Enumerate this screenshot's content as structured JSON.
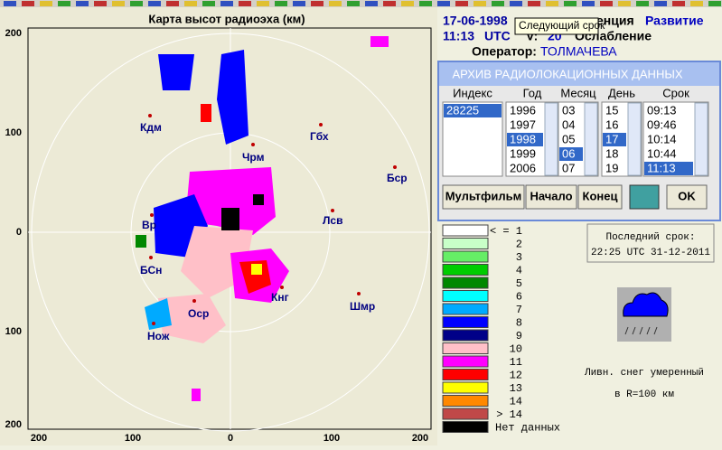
{
  "header": {
    "date": "17-06-1998",
    "time": "11:13",
    "tz": "UTC",
    "tooltip": "Следующий срок",
    "label1": "енция",
    "label1_value": "Развитие",
    "v_label": "V:",
    "v_value": "20",
    "attenuation": "Ослабление",
    "operator_label": "Оператор:",
    "operator": "ТОЛМАЧЕВА"
  },
  "map": {
    "title": "Карта высот радиоэха (км)",
    "y_ticks": [
      "200",
      "100",
      "0",
      "100",
      "200"
    ],
    "x_ticks": [
      "200",
      "100",
      "0",
      "100",
      "200"
    ],
    "stations": [
      {
        "name": "Кдм"
      },
      {
        "name": "Гбх"
      },
      {
        "name": "Чрм"
      },
      {
        "name": "Бср"
      },
      {
        "name": "Вр"
      },
      {
        "name": "Лсв"
      },
      {
        "name": "БСн"
      },
      {
        "name": "Кнг"
      },
      {
        "name": "Шмр"
      },
      {
        "name": "Оср"
      },
      {
        "name": "Нож"
      }
    ]
  },
  "archive": {
    "title": "АРХИВ   РАДИОЛОКАЦИОННЫХ ДАННЫХ",
    "columns": [
      {
        "header": "Индекс",
        "items": [
          "28225"
        ]
      },
      {
        "header": "Год",
        "items": [
          "1996",
          "1997",
          "1998",
          "1999",
          "2006"
        ]
      },
      {
        "header": "Месяц",
        "items": [
          "03",
          "04",
          "05",
          "06",
          "07"
        ]
      },
      {
        "header": "День",
        "items": [
          "15",
          "16",
          "17",
          "18",
          "19"
        ]
      },
      {
        "header": "Срок",
        "items": [
          "09:13",
          "09:46",
          "10:14",
          "10:44",
          "11:13"
        ]
      }
    ],
    "buttons": [
      "Мультфильм",
      "Начало",
      "Конец",
      "OK"
    ]
  },
  "legend": [
    {
      "label": "< = 1",
      "color": "#ffffff"
    },
    {
      "label": "2",
      "color": "#c8ffc8"
    },
    {
      "label": "3",
      "color": "#66ee66"
    },
    {
      "label": "4",
      "color": "#00cc00"
    },
    {
      "label": "5",
      "color": "#008800"
    },
    {
      "label": "6",
      "color": "#00ffff"
    },
    {
      "label": "7",
      "color": "#00aaff"
    },
    {
      "label": "8",
      "color": "#0000ff"
    },
    {
      "label": "9",
      "color": "#000088"
    },
    {
      "label": "10",
      "color": "#ffc0c8"
    },
    {
      "label": "11",
      "color": "#ff00ff"
    },
    {
      "label": "12",
      "color": "#ff0000"
    },
    {
      "label": "13",
      "color": "#ffff00"
    },
    {
      "label": "14",
      "color": "#ff8800"
    },
    {
      "label": "> 14",
      "color": "#c04848"
    },
    {
      "label": "Нет данных",
      "color": "#000000"
    }
  ],
  "last_term": {
    "label": "Последний срок:",
    "value": "22:25 UTC 31-12-2011"
  },
  "weather": {
    "line1": "Ливн. снег умеренный",
    "line2": "в R=100 км"
  }
}
